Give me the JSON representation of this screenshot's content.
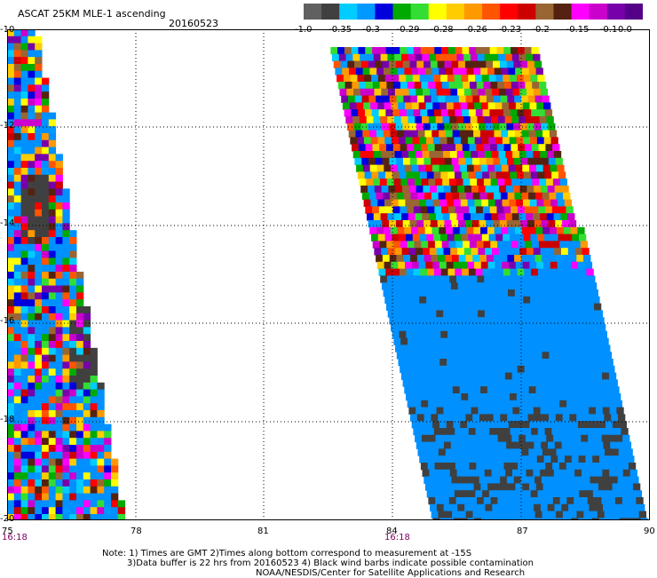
{
  "title": "ASCAT 25KM MLE-1 ascending",
  "date": "20160523",
  "colorbar": {
    "labels": [
      "-1.0",
      "-0.35",
      "-0.3",
      "-0.29",
      "-0.28",
      "-0.26",
      "-0.23",
      "-0.2",
      "-0.15",
      "-0.1",
      "0.0"
    ],
    "colors": [
      "#606060",
      "#404040",
      "#00ccff",
      "#0099ff",
      "#0000dd",
      "#00aa00",
      "#33dd33",
      "#ffff00",
      "#ffcc00",
      "#ff9900",
      "#ff5500",
      "#ff0000",
      "#cc0000",
      "#996633",
      "#552211",
      "#ff00ff",
      "#cc00cc",
      "#7700aa",
      "#550088"
    ]
  },
  "map": {
    "lat_labels": [
      "-10",
      "-12",
      "-14",
      "-16",
      "-18",
      "-20"
    ],
    "lon_labels": [
      "75",
      "78",
      "81",
      "84",
      "87",
      "90"
    ],
    "pass_times": [
      "16:18",
      "16:18"
    ],
    "lat_range": [
      -20,
      -10
    ],
    "lon_range": [
      75,
      90
    ]
  },
  "notes": {
    "line1": "Note: 1) Times are GMT 2)Times along bottom correspond to measurement at -15S",
    "line2": "3)Data buffer is 22 hrs from 20160523 4) Black wind barbs indicate possible contamination",
    "line3": "NOAA/NESDIS/Center for Satellite Applications and Research"
  },
  "palette": {
    "ocean_blue": "#0090ff",
    "contaminated_gray": "#404040"
  }
}
